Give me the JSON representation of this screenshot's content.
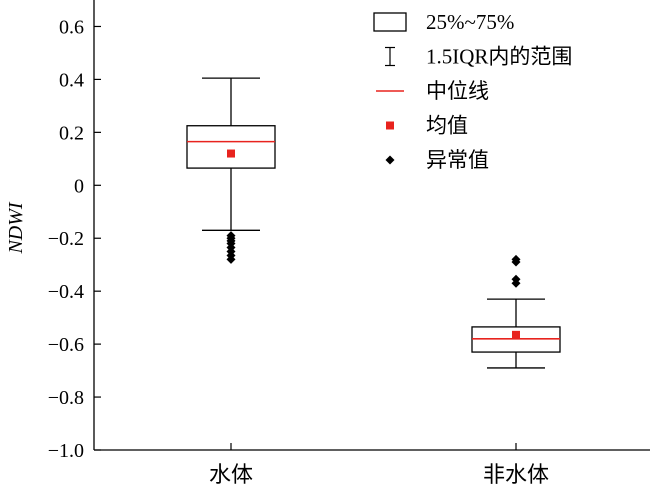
{
  "chart_data": {
    "type": "box",
    "title": "",
    "xlabel": "",
    "ylabel": "NDWI",
    "ylim": [
      -1.0,
      0.7
    ],
    "yticks": [
      0.6,
      0.4,
      0.2,
      0,
      -0.2,
      -0.4,
      -0.6,
      -0.8,
      -1.0
    ],
    "ytick_labels": [
      "0.6",
      "0.4",
      "0.2",
      "0",
      "−0.2",
      "−0.4",
      "−0.6",
      "−0.8",
      "−1.0"
    ],
    "categories": [
      "水体",
      "非水体"
    ],
    "boxes": [
      {
        "category": "水体",
        "q1": 0.065,
        "median": 0.165,
        "q3": 0.225,
        "whisker_low": -0.17,
        "whisker_high": 0.405,
        "mean": 0.12,
        "outliers": [
          -0.19,
          -0.2,
          -0.21,
          -0.22,
          -0.235,
          -0.25,
          -0.265,
          -0.28
        ]
      },
      {
        "category": "非水体",
        "q1": -0.63,
        "median": -0.58,
        "q3": -0.535,
        "whisker_low": -0.69,
        "whisker_high": -0.43,
        "mean": -0.565,
        "outliers": [
          -0.28,
          -0.29,
          -0.355,
          -0.37
        ]
      }
    ],
    "legend": {
      "position": "top-right",
      "entries": [
        {
          "symbol": "box",
          "label": "25%~75%"
        },
        {
          "symbol": "range",
          "label": "1.5IQR内的范围"
        },
        {
          "symbol": "median",
          "label": "中位线"
        },
        {
          "symbol": "mean",
          "label": "均值"
        },
        {
          "symbol": "outlier",
          "label": "异常值"
        }
      ]
    },
    "colors": {
      "median": "#e8231e",
      "mean": "#e8231e",
      "box": "#000000",
      "outlier": "#000000"
    }
  }
}
